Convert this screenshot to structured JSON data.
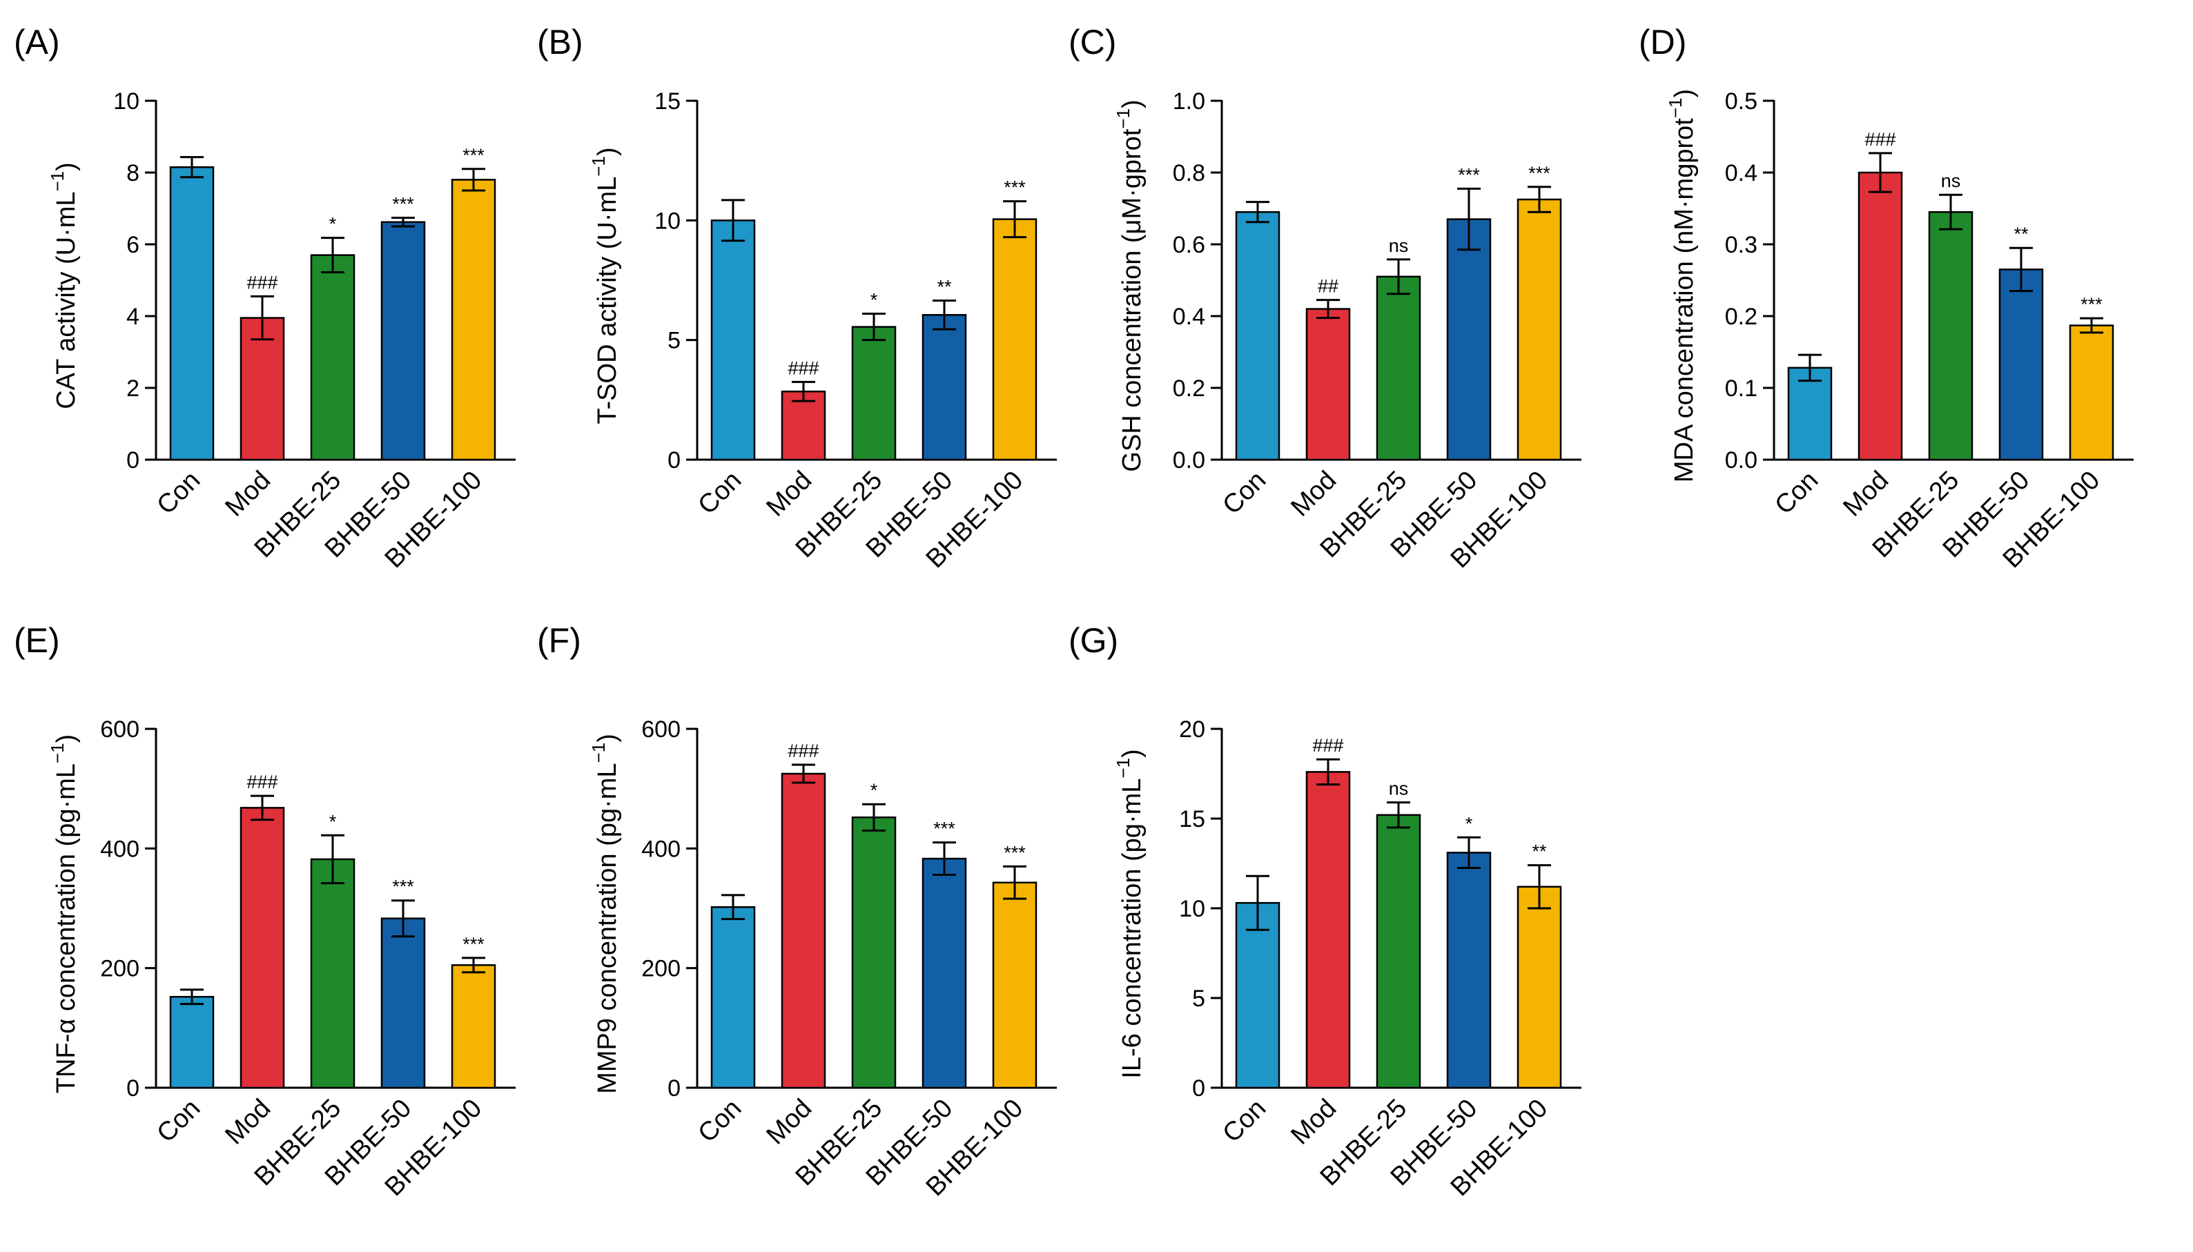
{
  "figure": {
    "categories": [
      "Con",
      "Mod",
      "BHBE-25",
      "BHBE-50",
      "BHBE-100"
    ],
    "colors": [
      "#1f96c8",
      "#e0303a",
      "#1e8a2c",
      "#125fa6",
      "#f5b400"
    ]
  },
  "chart_data": [
    {
      "panel": "(A)",
      "type": "bar",
      "ylabel_main": "CAT activity (U·mL",
      "ylabel_sup": "−1",
      "ylabel_end": ")",
      "ylim": [
        0,
        10
      ],
      "yticks": [
        0,
        2,
        4,
        6,
        8,
        10
      ],
      "values": [
        8.15,
        3.95,
        5.7,
        6.62,
        7.8
      ],
      "errors": [
        0.28,
        0.6,
        0.48,
        0.12,
        0.3
      ],
      "significance": [
        "",
        "###",
        "*",
        "***",
        "***"
      ]
    },
    {
      "panel": "(B)",
      "type": "bar",
      "ylabel_main": "T-SOD activity (U·mL",
      "ylabel_sup": "−1",
      "ylabel_end": ")",
      "ylim": [
        0,
        15
      ],
      "yticks": [
        0,
        5,
        10,
        15
      ],
      "values": [
        10.0,
        2.85,
        5.55,
        6.05,
        10.05
      ],
      "errors": [
        0.85,
        0.4,
        0.55,
        0.6,
        0.75
      ],
      "significance": [
        "",
        "###",
        "*",
        "**",
        "***"
      ]
    },
    {
      "panel": "(C)",
      "type": "bar",
      "ylabel_main": "GSH concentration (μM·gprot",
      "ylabel_sup": "−1",
      "ylabel_end": ")",
      "ylim": [
        0,
        1.0
      ],
      "yticks": [
        "0.0",
        "0.2",
        "0.4",
        "0.6",
        "0.8",
        "1.0"
      ],
      "values": [
        0.69,
        0.42,
        0.51,
        0.67,
        0.725
      ],
      "errors": [
        0.028,
        0.025,
        0.048,
        0.085,
        0.035
      ],
      "significance": [
        "",
        "##",
        "ns",
        "***",
        "***"
      ]
    },
    {
      "panel": "(D)",
      "type": "bar",
      "ylabel_main": "MDA concentration (nM·mgprot",
      "ylabel_sup": "−1",
      "ylabel_end": ")",
      "ylim": [
        0,
        0.5
      ],
      "yticks": [
        "0.0",
        "0.1",
        "0.2",
        "0.3",
        "0.4",
        "0.5"
      ],
      "values": [
        0.128,
        0.4,
        0.345,
        0.265,
        0.187
      ],
      "errors": [
        0.018,
        0.027,
        0.024,
        0.03,
        0.01
      ],
      "significance": [
        "",
        "###",
        "ns",
        "**",
        "***"
      ]
    },
    {
      "panel": "(E)",
      "type": "bar",
      "ylabel_main": "TNF-α concentration (pg·mL",
      "ylabel_sup": "−1",
      "ylabel_end": ")",
      "ylim": [
        0,
        600
      ],
      "yticks": [
        0,
        200,
        400,
        600
      ],
      "values": [
        152,
        468,
        382,
        283,
        205
      ],
      "errors": [
        12,
        20,
        40,
        30,
        12
      ],
      "significance": [
        "",
        "###",
        "*",
        "***",
        "***"
      ]
    },
    {
      "panel": "(F)",
      "type": "bar",
      "ylabel_main": "MMP9 concentration (pg·mL",
      "ylabel_sup": "−1",
      "ylabel_end": ")",
      "ylim": [
        0,
        600
      ],
      "yticks": [
        0,
        200,
        400,
        600
      ],
      "values": [
        302,
        525,
        452,
        383,
        343
      ],
      "errors": [
        20,
        15,
        22,
        27,
        27
      ],
      "significance": [
        "",
        "###",
        "*",
        "***",
        "***"
      ]
    },
    {
      "panel": "(G)",
      "type": "bar",
      "ylabel_main": "IL-6 concentration (pg·mL",
      "ylabel_sup": "−1",
      "ylabel_end": ")",
      "ylim": [
        0,
        20
      ],
      "yticks": [
        0,
        5,
        10,
        15,
        20
      ],
      "values": [
        10.3,
        17.6,
        15.2,
        13.1,
        11.2
      ],
      "errors": [
        1.5,
        0.7,
        0.7,
        0.85,
        1.2
      ],
      "significance": [
        "",
        "###",
        "ns",
        "*",
        "**"
      ]
    }
  ]
}
